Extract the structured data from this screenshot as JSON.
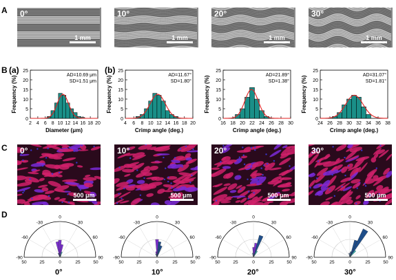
{
  "panel_labels": {
    "A": "A",
    "B": "B",
    "B_a": "(a)",
    "B_b": "(b)",
    "C": "C",
    "D": "D"
  },
  "row_a": [
    {
      "angle": "0°",
      "scale": "1 mm"
    },
    {
      "angle": "10°",
      "scale": "1 mm"
    },
    {
      "angle": "20°",
      "scale": "1 mm"
    },
    {
      "angle": "30°",
      "scale": "1 mm"
    }
  ],
  "row_c": [
    {
      "angle": "0°",
      "scale": "500 μm"
    },
    {
      "angle": "10°",
      "scale": "500 μm"
    },
    {
      "angle": "20°",
      "scale": "500 μm"
    },
    {
      "angle": "30°",
      "scale": "500 μm"
    }
  ],
  "row_d_captions": [
    "0°",
    "10°",
    "20°",
    "30°"
  ],
  "colors": {
    "bar": "#1a8f88",
    "curve": "#e02020",
    "polar_a": "#7b2fd0",
    "polar_b": "#1f4e8a",
    "polar_c": "#3fb6b0"
  },
  "chart_data": [
    {
      "type": "bar",
      "annotation": [
        "AD=10.69 μm",
        "SD=1.51 μm"
      ],
      "xlabel": "Diameter (μm)",
      "ylabel": "Frequency (%)",
      "x_ticks": [
        2,
        4,
        6,
        8,
        10,
        12,
        14,
        16,
        18,
        20
      ],
      "y_ticks": [
        0,
        5,
        10,
        15,
        20,
        25
      ],
      "xlim": [
        2,
        20
      ],
      "ylim": [
        0,
        25
      ],
      "bin_width": 1,
      "x": [
        7,
        8,
        9,
        10,
        11,
        12,
        13,
        14,
        15,
        16
      ],
      "values": [
        1,
        4,
        8,
        13,
        12,
        8,
        5,
        3,
        1,
        0.5
      ],
      "fit": {
        "mean": 10.69,
        "sd": 1.51,
        "peak": 12.5
      }
    },
    {
      "type": "bar",
      "annotation": [
        "AD=11.67°",
        "SD=1.80°"
      ],
      "xlabel": "Crimp angle (deg.)",
      "ylabel": "Frequency (%)",
      "x_ticks": [
        4,
        6,
        8,
        10,
        12,
        14,
        16,
        18,
        20
      ],
      "y_ticks": [
        0,
        5,
        10,
        15,
        20,
        25
      ],
      "xlim": [
        4,
        20
      ],
      "ylim": [
        0,
        25
      ],
      "bin_width": 1,
      "x": [
        7,
        8,
        9,
        10,
        11,
        12,
        13,
        14,
        15,
        16
      ],
      "values": [
        1,
        2,
        5,
        9,
        13,
        12,
        9,
        4,
        2,
        1
      ],
      "fit": {
        "mean": 11.67,
        "sd": 1.8,
        "peak": 12.5
      }
    },
    {
      "type": "bar",
      "annotation": [
        "AD=21.89°",
        "SD=1.38°"
      ],
      "xlabel": "Crimp angle (deg.)",
      "ylabel": "",
      "x_ticks": [
        16,
        18,
        20,
        22,
        24,
        26,
        28,
        30
      ],
      "y_ticks": [
        0,
        5,
        10,
        15,
        20,
        25
      ],
      "xlim": [
        16,
        30
      ],
      "ylim": [
        0,
        25
      ],
      "bin_width": 1,
      "x": [
        19,
        20,
        21,
        22,
        23,
        24,
        25
      ],
      "values": [
        2,
        5,
        11,
        16,
        10,
        4,
        1
      ],
      "fit": {
        "mean": 21.89,
        "sd": 1.38,
        "peak": 15
      }
    },
    {
      "type": "bar",
      "annotation": [
        "AD=31.07°",
        "SD=1.81°"
      ],
      "xlabel": "Crimp angle (deg.)",
      "ylabel": "",
      "x_ticks": [
        24,
        26,
        28,
        30,
        32,
        34,
        36,
        38
      ],
      "y_ticks": [
        0,
        5,
        10,
        15,
        20,
        25
      ],
      "xlim": [
        24,
        38
      ],
      "ylim": [
        0,
        25
      ],
      "bin_width": 1,
      "x": [
        27,
        28,
        29,
        30,
        31,
        32,
        33,
        34
      ],
      "values": [
        1,
        3,
        7,
        10,
        12,
        11,
        6,
        2
      ],
      "fit": {
        "mean": 31.07,
        "sd": 1.81,
        "peak": 12
      }
    }
  ],
  "polar_data": {
    "type": "polar-bar",
    "angle_ticks": [
      "-90",
      "-60",
      "-30",
      "0",
      "30",
      "60",
      "90"
    ],
    "radius_ticks": [
      "50",
      "25",
      "0",
      "25",
      "50"
    ],
    "plots": [
      {
        "bars": [
          {
            "angle": -10,
            "r": 22,
            "c": "polar_a"
          },
          {
            "angle": 0,
            "r": 24,
            "c": "polar_a"
          },
          {
            "angle": 10,
            "r": 18,
            "c": "polar_a"
          },
          {
            "angle": 20,
            "r": 8,
            "c": "polar_c"
          },
          {
            "angle": -20,
            "r": 6,
            "c": "polar_b"
          },
          {
            "angle": 30,
            "r": 3,
            "c": "polar_c"
          }
        ]
      },
      {
        "bars": [
          {
            "angle": -10,
            "r": 8,
            "c": "polar_a"
          },
          {
            "angle": 0,
            "r": 25,
            "c": "polar_a"
          },
          {
            "angle": 10,
            "r": 22,
            "c": "polar_b"
          },
          {
            "angle": 20,
            "r": 17,
            "c": "polar_b"
          },
          {
            "angle": -20,
            "r": 5,
            "c": "polar_c"
          }
        ]
      },
      {
        "bars": [
          {
            "angle": -10,
            "r": 6,
            "c": "polar_c"
          },
          {
            "angle": 0,
            "r": 14,
            "c": "polar_a"
          },
          {
            "angle": 10,
            "r": 20,
            "c": "polar_a"
          },
          {
            "angle": 20,
            "r": 32,
            "c": "polar_b"
          },
          {
            "angle": 30,
            "r": 10,
            "c": "polar_c"
          }
        ]
      },
      {
        "bars": [
          {
            "angle": -10,
            "r": 6,
            "c": "polar_b"
          },
          {
            "angle": 10,
            "r": 8,
            "c": "polar_b"
          },
          {
            "angle": 20,
            "r": 25,
            "c": "polar_b"
          },
          {
            "angle": 30,
            "r": 44,
            "c": "polar_b"
          },
          {
            "angle": 40,
            "r": 12,
            "c": "polar_c"
          }
        ]
      }
    ]
  }
}
